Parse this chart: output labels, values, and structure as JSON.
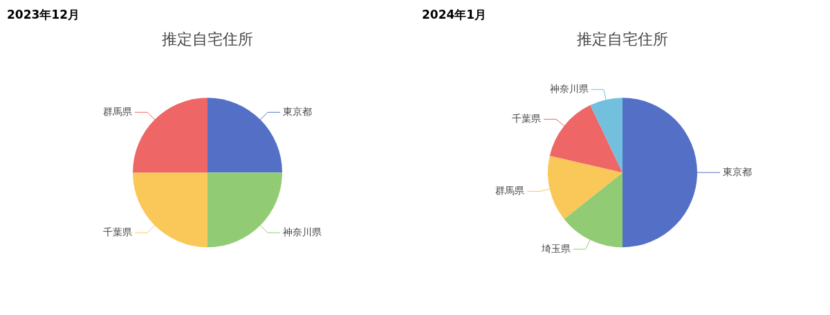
{
  "chart_data": [
    {
      "type": "pie",
      "title": "2023年12月",
      "subtitle": "推定自宅住所",
      "categories": [
        "東京都",
        "神奈川県",
        "千葉県",
        "群馬県"
      ],
      "values": [
        25,
        25,
        25,
        25
      ],
      "colors": [
        "#5470c6",
        "#91cc75",
        "#fac858",
        "#ee6666"
      ],
      "legend": false
    },
    {
      "type": "pie",
      "title": "2024年1月",
      "subtitle": "推定自宅住所",
      "categories": [
        "東京都",
        "埼玉県",
        "群馬県",
        "千葉県",
        "神奈川県"
      ],
      "values": [
        50,
        14.3,
        14.3,
        14.3,
        7.1
      ],
      "colors": [
        "#5470c6",
        "#91cc75",
        "#fac858",
        "#ee6666",
        "#73c0de"
      ],
      "legend": false
    }
  ]
}
